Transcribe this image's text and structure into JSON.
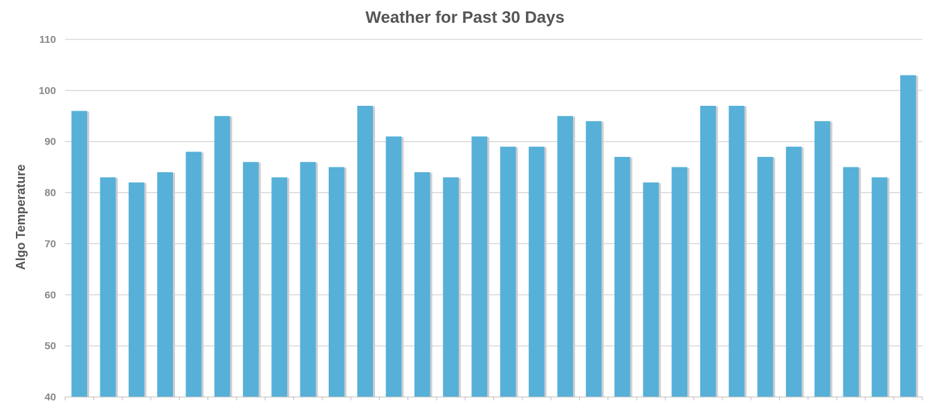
{
  "chart_data": {
    "type": "bar",
    "title": "Weather for Past 30 Days",
    "xlabel": "",
    "ylabel": "Algo Temperature",
    "ylim": [
      40,
      110
    ],
    "yticks": [
      40,
      50,
      60,
      70,
      80,
      90,
      100,
      110
    ],
    "grid": true,
    "legend": "none",
    "bar_color": "#56b0d8",
    "bar_shadow_color": "#cfcfcf",
    "series": [
      {
        "values": [
          96,
          83,
          82,
          84,
          88,
          95,
          86,
          83,
          86,
          85,
          97,
          91,
          84,
          83,
          91,
          89,
          89,
          95,
          94,
          87,
          82,
          85,
          97,
          97,
          87,
          89,
          94,
          85,
          83,
          103
        ]
      }
    ]
  }
}
